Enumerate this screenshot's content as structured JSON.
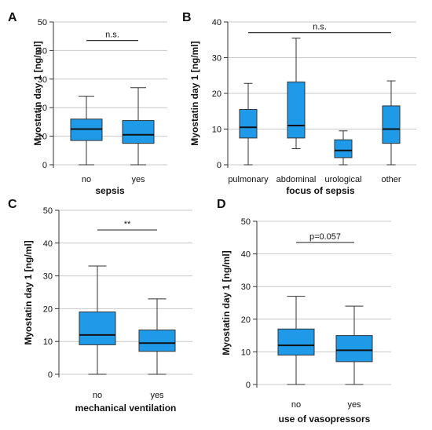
{
  "colors": {
    "box_fill": "#1e9ae8",
    "grid": "#c8c8c8",
    "axis": "#333333",
    "text": "#111111"
  },
  "chart_data": [
    {
      "panel": "A",
      "type": "box",
      "xlabel": "sepsis",
      "ylabel": "Myostatin day 1 [ng/ml]",
      "ylim": [
        0,
        50
      ],
      "yticks": [
        0,
        10,
        20,
        30,
        40,
        50
      ],
      "grid": true,
      "categories": [
        "no",
        "yes"
      ],
      "boxes": [
        {
          "min": 0,
          "q1": 8.5,
          "median": 12.5,
          "q3": 16,
          "max": 24
        },
        {
          "min": 0,
          "q1": 7.5,
          "median": 10.5,
          "q3": 15.5,
          "max": 27
        }
      ],
      "annotation": {
        "text": "n.s.",
        "from": 0,
        "to": 1,
        "y": 43.5
      }
    },
    {
      "panel": "B",
      "type": "box",
      "xlabel": "focus of sepsis",
      "ylabel": "Myostatin day 1 [ng/ml]",
      "ylim": [
        0,
        40
      ],
      "yticks": [
        0,
        10,
        20,
        30,
        40
      ],
      "grid": true,
      "categories": [
        "pulmonary",
        "abdominal",
        "urological",
        "other"
      ],
      "boxes": [
        {
          "min": 0,
          "q1": 7.5,
          "median": 10.5,
          "q3": 15.5,
          "max": 22.8
        },
        {
          "min": 4.5,
          "q1": 7.5,
          "median": 11,
          "q3": 23.2,
          "max": 35.5
        },
        {
          "min": 0,
          "q1": 2,
          "median": 4,
          "q3": 7,
          "max": 9.5
        },
        {
          "min": 0,
          "q1": 6,
          "median": 10,
          "q3": 16.5,
          "max": 23.5
        }
      ],
      "annotation": {
        "text": "n.s.",
        "from": 0,
        "to": 3,
        "y": 37
      }
    },
    {
      "panel": "C",
      "type": "box",
      "xlabel": "mechanical ventilation",
      "ylabel": "Myostatin day 1 [ng/ml]",
      "ylim": [
        0,
        50
      ],
      "yticks": [
        0,
        10,
        20,
        30,
        40,
        50
      ],
      "grid": true,
      "categories": [
        "no",
        "yes"
      ],
      "boxes": [
        {
          "min": 0,
          "q1": 9,
          "median": 12,
          "q3": 19,
          "max": 33
        },
        {
          "min": 0,
          "q1": 7,
          "median": 9.5,
          "q3": 13.5,
          "max": 23
        }
      ],
      "annotation": {
        "text": "**",
        "from": 0,
        "to": 1,
        "y": 44
      }
    },
    {
      "panel": "D",
      "type": "box",
      "xlabel": "use of vasopressors",
      "ylabel": "Myostatin day 1 [ng/ml]",
      "ylim": [
        0,
        50
      ],
      "yticks": [
        0,
        10,
        20,
        30,
        40,
        50
      ],
      "grid": true,
      "categories": [
        "no",
        "yes"
      ],
      "boxes": [
        {
          "min": 0,
          "q1": 9,
          "median": 12,
          "q3": 17,
          "max": 27
        },
        {
          "min": 0,
          "q1": 7,
          "median": 10.5,
          "q3": 15,
          "max": 24
        }
      ],
      "annotation": {
        "text": "p=0.057",
        "from": 0,
        "to": 1,
        "y": 43.5
      }
    }
  ]
}
